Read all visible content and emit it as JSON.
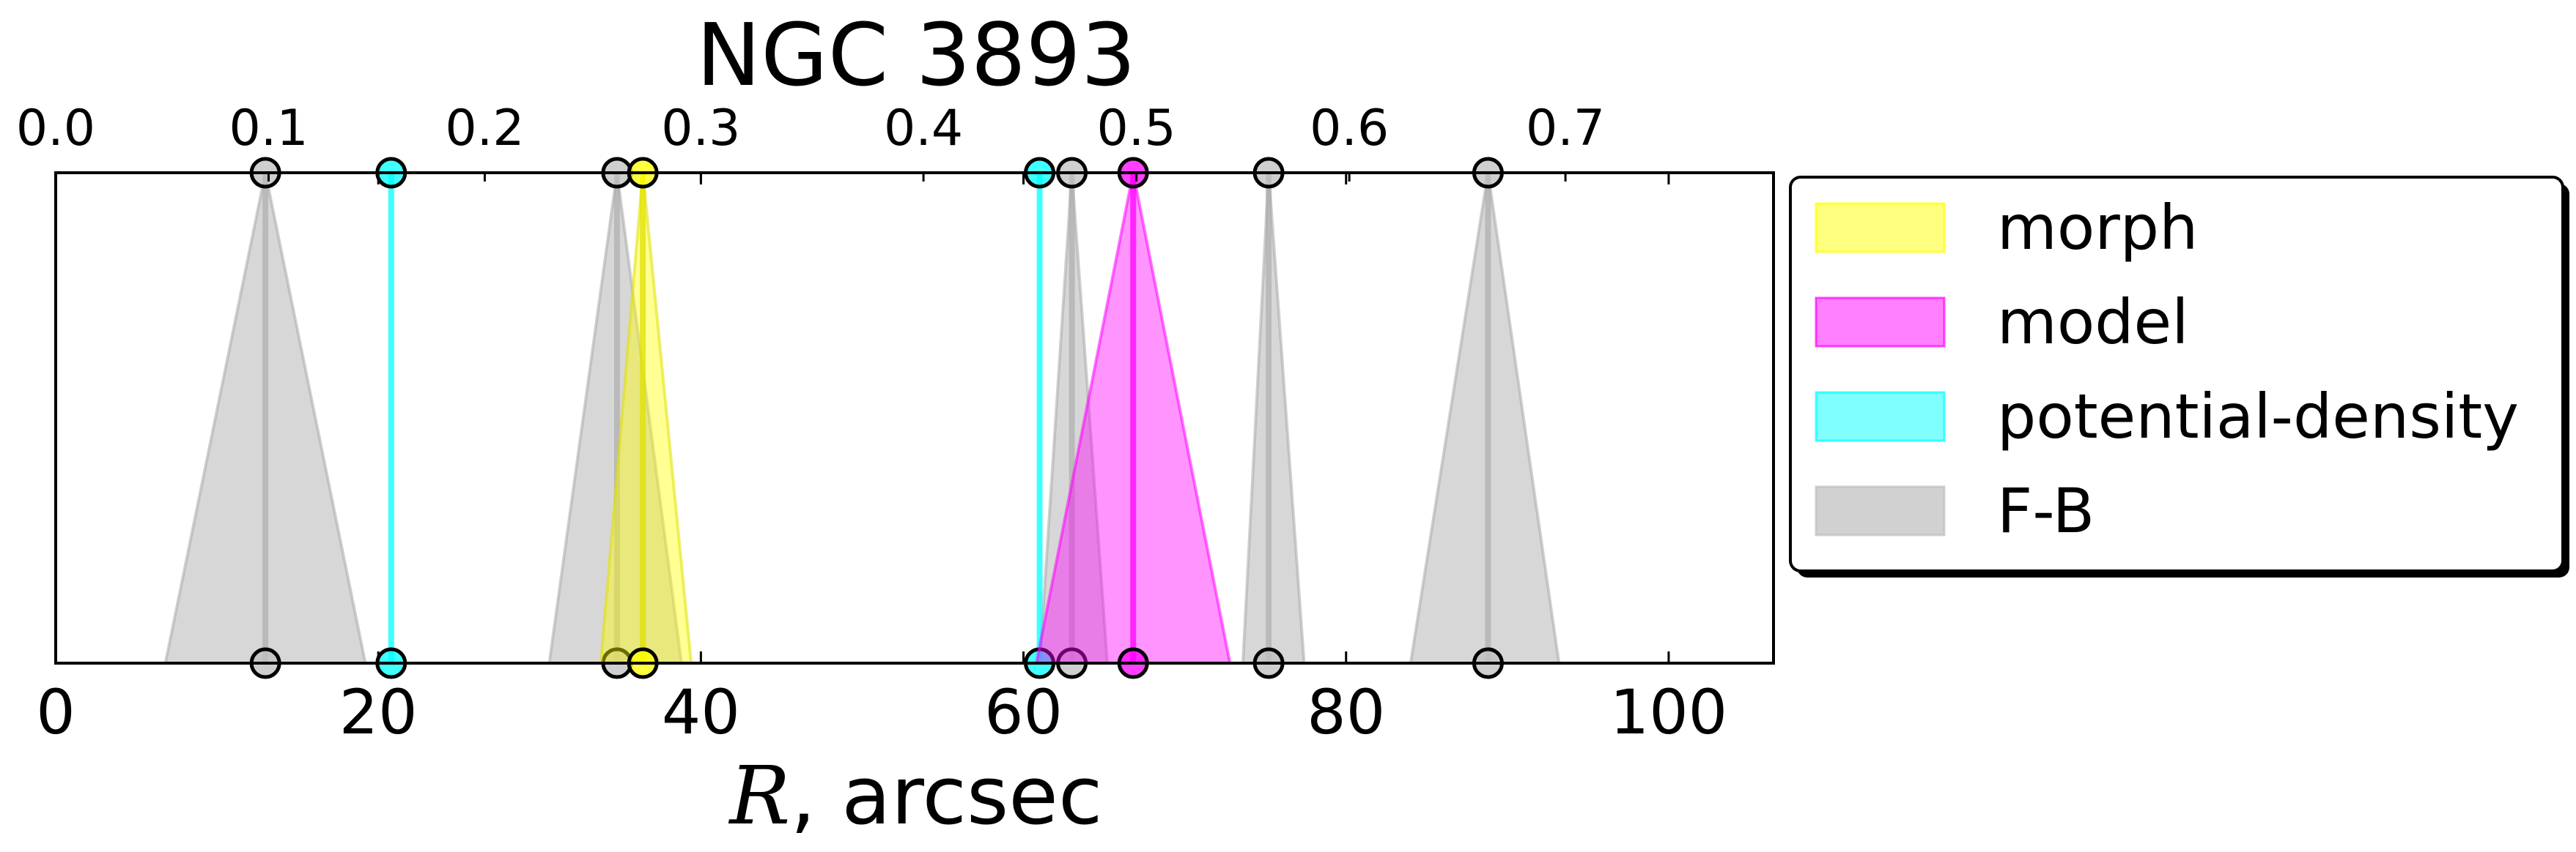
{
  "chart_data": {
    "type": "area",
    "title": "NGC 3893",
    "xlabel": {
      "symbol": "R",
      "rest": ", arcsec"
    },
    "xlim": [
      0,
      106.5
    ],
    "xticks": [
      0,
      20,
      40,
      60,
      80,
      100
    ],
    "top_axis": {
      "ticks": [
        {
          "label": "0.0",
          "R": 0
        },
        {
          "label": "0.1",
          "R": 13.2
        },
        {
          "label": "0.2",
          "R": 26.6
        },
        {
          "label": "0.3",
          "R": 40.0
        },
        {
          "label": "0.4",
          "R": 53.8
        },
        {
          "label": "0.5",
          "R": 67.0
        },
        {
          "label": "0.6",
          "R": 80.2
        },
        {
          "label": "0.7",
          "R": 93.6
        }
      ]
    },
    "legend": {
      "placement": "outside-right",
      "entries": [
        {
          "label": "morph",
          "color": "#ffff00"
        },
        {
          "label": "model",
          "color": "#ff00ff"
        },
        {
          "label": "potential-density",
          "color": "#00ffff"
        },
        {
          "label": "F-B",
          "color": "#bfbfbf"
        }
      ]
    },
    "series": [
      {
        "name": "F-B",
        "color": "#bfbfbf",
        "edge": "#aaaaaa",
        "markers": [
          {
            "top": 13.0,
            "bottom": 13.0,
            "left": 6.8,
            "right": 19.2
          },
          {
            "top": 34.8,
            "bottom": 34.8,
            "left": 30.6,
            "right": 38.8
          },
          {
            "top": 63.0,
            "bottom": 63.0,
            "left": 61.0,
            "right": 65.2
          },
          {
            "top": 75.2,
            "bottom": 75.2,
            "left": 73.6,
            "right": 77.4
          },
          {
            "top": 88.8,
            "bottom": 88.8,
            "left": 84.0,
            "right": 93.2
          }
        ]
      },
      {
        "name": "morph",
        "color": "#ffff00",
        "edge": "#e0e000",
        "markers": [
          {
            "top": 36.4,
            "bottom": 36.4,
            "left": 33.8,
            "right": 39.4
          }
        ]
      },
      {
        "name": "potential-density",
        "color": "#00ffff",
        "edge": "#00ffff",
        "markers": [
          {
            "top": 20.8,
            "bottom": 20.8,
            "left": 20.8,
            "right": 20.8
          },
          {
            "top": 61.0,
            "bottom": 61.0,
            "left": 61.0,
            "right": 61.0
          }
        ]
      },
      {
        "name": "model",
        "color": "#ff00ff",
        "edge": "#ff00ff",
        "markers": [
          {
            "top": 66.8,
            "bottom": 66.8,
            "left": 60.8,
            "right": 72.8
          }
        ]
      }
    ]
  }
}
